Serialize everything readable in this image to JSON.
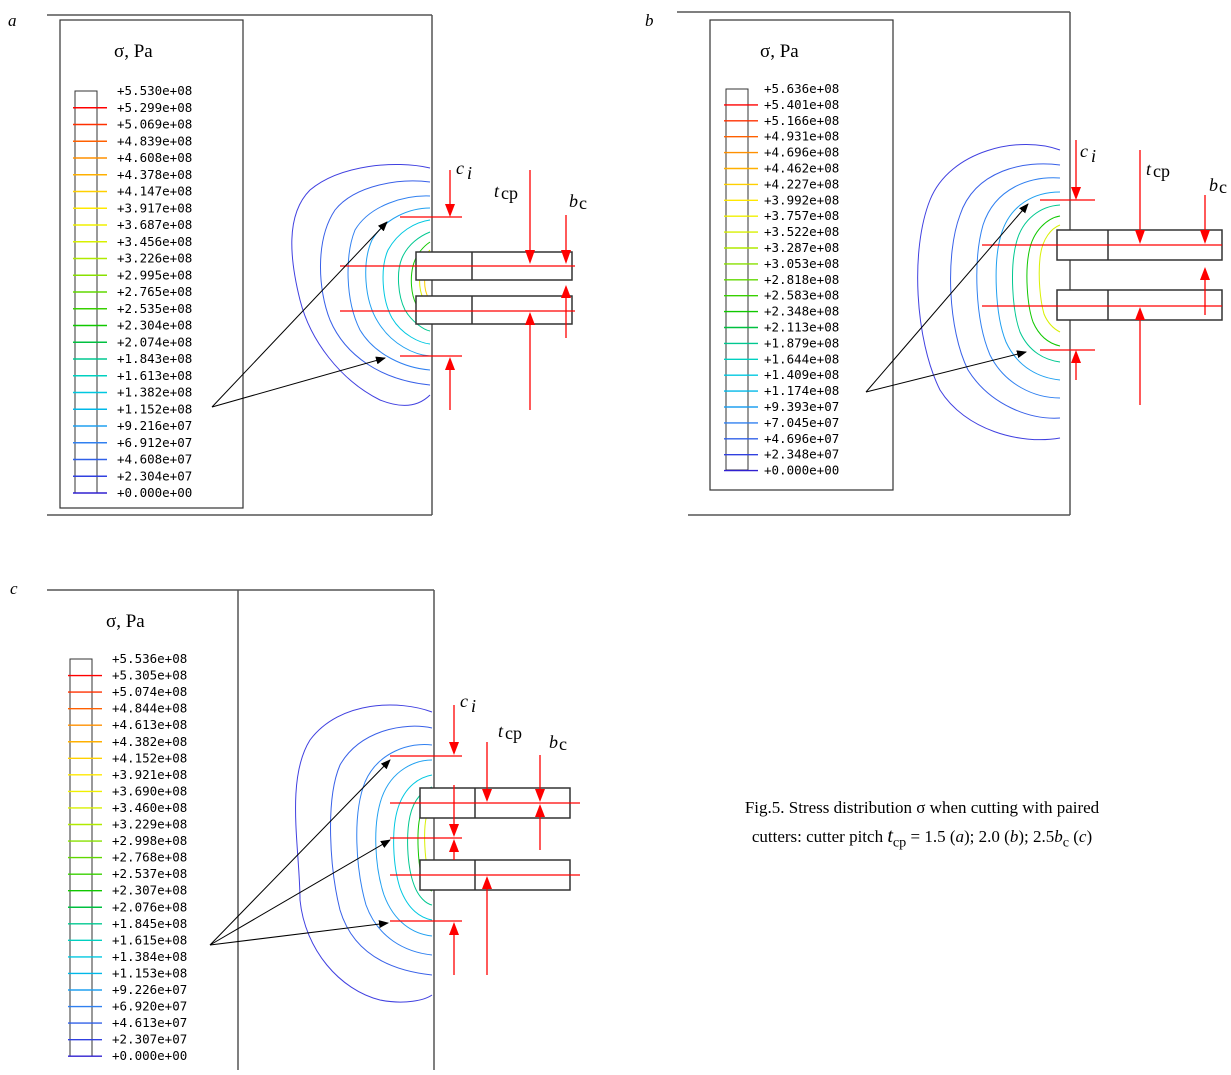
{
  "panels": [
    {
      "id": "a",
      "label": "a",
      "legend_title": "σ, Pa",
      "legend_values": [
        "+5.530e+08",
        "+5.299e+08",
        "+5.069e+08",
        "+4.839e+08",
        "+4.608e+08",
        "+4.378e+08",
        "+4.147e+08",
        "+3.917e+08",
        "+3.687e+08",
        "+3.456e+08",
        "+3.226e+08",
        "+2.995e+08",
        "+2.765e+08",
        "+2.535e+08",
        "+2.304e+08",
        "+2.074e+08",
        "+1.843e+08",
        "+1.613e+08",
        "+1.382e+08",
        "+1.152e+08",
        "+9.216e+07",
        "+6.912e+07",
        "+4.608e+07",
        "+2.304e+07",
        "+0.000e+00"
      ],
      "labels": {
        "c": "c",
        "c_sub": "i",
        "t": "t",
        "t_sub": "cp",
        "b": "b",
        "b_sub": "c"
      }
    },
    {
      "id": "b",
      "label": "b",
      "legend_title": "σ, Pa",
      "legend_values": [
        "+5.636e+08",
        "+5.401e+08",
        "+5.166e+08",
        "+4.931e+08",
        "+4.696e+08",
        "+4.462e+08",
        "+4.227e+08",
        "+3.992e+08",
        "+3.757e+08",
        "+3.522e+08",
        "+3.287e+08",
        "+3.053e+08",
        "+2.818e+08",
        "+2.583e+08",
        "+2.348e+08",
        "+2.113e+08",
        "+1.879e+08",
        "+1.644e+08",
        "+1.409e+08",
        "+1.174e+08",
        "+9.393e+07",
        "+7.045e+07",
        "+4.696e+07",
        "+2.348e+07",
        "+0.000e+00"
      ],
      "labels": {
        "c": "c",
        "c_sub": "i",
        "t": "t",
        "t_sub": "cp",
        "b": "b",
        "b_sub": "c"
      }
    },
    {
      "id": "c",
      "label": "c",
      "legend_title": "σ, Pa",
      "legend_values": [
        "+5.536e+08",
        "+5.305e+08",
        "+5.074e+08",
        "+4.844e+08",
        "+4.613e+08",
        "+4.382e+08",
        "+4.152e+08",
        "+3.921e+08",
        "+3.690e+08",
        "+3.460e+08",
        "+3.229e+08",
        "+2.998e+08",
        "+2.768e+08",
        "+2.537e+08",
        "+2.307e+08",
        "+2.076e+08",
        "+1.845e+08",
        "+1.615e+08",
        "+1.384e+08",
        "+1.153e+08",
        "+9.226e+07",
        "+6.920e+07",
        "+4.613e+07",
        "+2.307e+07",
        "+0.000e+00"
      ],
      "labels": {
        "c": "c",
        "c_sub": "i",
        "t": "t",
        "t_sub": "cp",
        "b": "b",
        "b_sub": "c"
      }
    }
  ],
  "caption": {
    "line1": "Fig.5. Stress distribution σ when cutting with paired",
    "line2_prefix": "cutters: cutter pitch ",
    "t": "t",
    "t_sub": "cp",
    "line2_values": " = 1.5 (",
    "a": "a",
    "v2": "); 2.0 (",
    "b": "b",
    "v3": ");  2.5",
    "b_sym": "b",
    "b_sub": "c",
    "v4": " (",
    "c": "c",
    "v5": ")"
  },
  "colors": {
    "legend_scale": [
      "#ff0000",
      "#ff3000",
      "#ff6000",
      "#ff9000",
      "#ffb000",
      "#ffd000",
      "#ffe800",
      "#f0f000",
      "#d8f000",
      "#b0ea00",
      "#88e000",
      "#60d800",
      "#38d000",
      "#10c800",
      "#00c040",
      "#00c890",
      "#00d0c0",
      "#00c8e0",
      "#00b8e8",
      "#20a0f0",
      "#3080f0",
      "#3060e8",
      "#3040e0",
      "#3020d0"
    ],
    "arrow_red": "#ff0000"
  }
}
